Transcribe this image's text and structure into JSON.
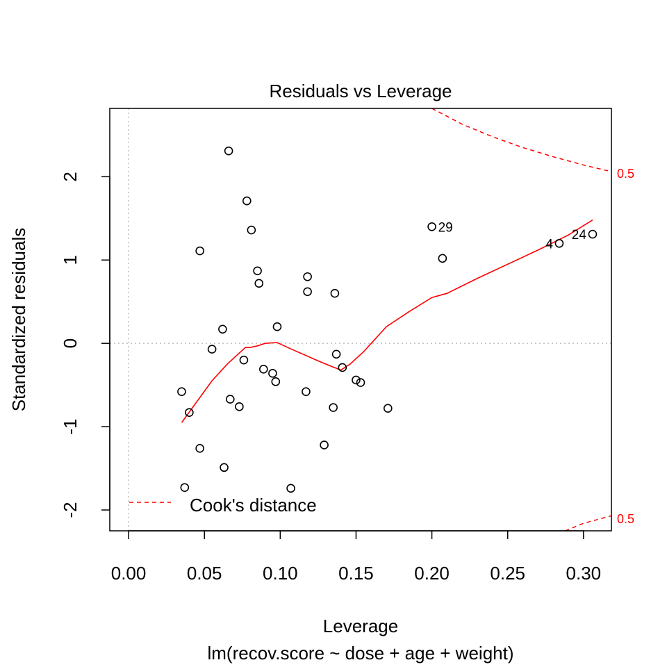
{
  "chart_data": {
    "type": "scatter",
    "title": "Residuals vs Leverage",
    "xlabel": "Leverage",
    "sublabel": "lm(recov.score ~ dose + age + weight)",
    "ylabel": "Standardized residuals",
    "xlim": [
      -0.0124,
      0.3184
    ],
    "ylim": [
      -2.25,
      2.82
    ],
    "xticks": [
      {
        "value": 0.0,
        "label": "0.00"
      },
      {
        "value": 0.05,
        "label": "0.05"
      },
      {
        "value": 0.1,
        "label": "0.10"
      },
      {
        "value": 0.15,
        "label": "0.15"
      },
      {
        "value": 0.2,
        "label": "0.20"
      },
      {
        "value": 0.25,
        "label": "0.25"
      },
      {
        "value": 0.3,
        "label": "0.30"
      }
    ],
    "yticks": [
      {
        "value": -2,
        "label": "-2"
      },
      {
        "value": -1,
        "label": "-1"
      },
      {
        "value": 0,
        "label": "0"
      },
      {
        "value": 1,
        "label": "1"
      },
      {
        "value": 2,
        "label": "2"
      }
    ],
    "points": [
      {
        "x": 0.066,
        "y": 2.31
      },
      {
        "x": 0.078,
        "y": 1.71
      },
      {
        "x": 0.081,
        "y": 1.36
      },
      {
        "x": 0.047,
        "y": 1.11
      },
      {
        "x": 0.085,
        "y": 0.87
      },
      {
        "x": 0.086,
        "y": 0.72
      },
      {
        "x": 0.118,
        "y": 0.8
      },
      {
        "x": 0.118,
        "y": 0.62
      },
      {
        "x": 0.136,
        "y": 0.6
      },
      {
        "x": 0.062,
        "y": 0.17
      },
      {
        "x": 0.098,
        "y": 0.2
      },
      {
        "x": 0.055,
        "y": -0.07
      },
      {
        "x": 0.076,
        "y": -0.2
      },
      {
        "x": 0.089,
        "y": -0.31
      },
      {
        "x": 0.095,
        "y": -0.36
      },
      {
        "x": 0.097,
        "y": -0.46
      },
      {
        "x": 0.137,
        "y": -0.13
      },
      {
        "x": 0.141,
        "y": -0.29
      },
      {
        "x": 0.15,
        "y": -0.44
      },
      {
        "x": 0.153,
        "y": -0.47
      },
      {
        "x": 0.035,
        "y": -0.58
      },
      {
        "x": 0.04,
        "y": -0.83
      },
      {
        "x": 0.067,
        "y": -0.67
      },
      {
        "x": 0.073,
        "y": -0.76
      },
      {
        "x": 0.117,
        "y": -0.58
      },
      {
        "x": 0.135,
        "y": -0.77
      },
      {
        "x": 0.171,
        "y": -0.78
      },
      {
        "x": 0.047,
        "y": -1.26
      },
      {
        "x": 0.063,
        "y": -1.49
      },
      {
        "x": 0.129,
        "y": -1.22
      },
      {
        "x": 0.037,
        "y": -1.73
      },
      {
        "x": 0.107,
        "y": -1.74
      },
      {
        "x": 0.2,
        "y": 1.4,
        "label": "29"
      },
      {
        "x": 0.207,
        "y": 1.02
      },
      {
        "x": 0.284,
        "y": 1.2,
        "label": "4"
      },
      {
        "x": 0.306,
        "y": 1.31,
        "label": "24"
      }
    ],
    "smooth_line": {
      "color": "#ff0000",
      "x": [
        0.035,
        0.045,
        0.055,
        0.065,
        0.077,
        0.08,
        0.085,
        0.09,
        0.098,
        0.105,
        0.115,
        0.125,
        0.133,
        0.14,
        0.146,
        0.155,
        0.17,
        0.185,
        0.2,
        0.21,
        0.23,
        0.25,
        0.27,
        0.29,
        0.306
      ],
      "y": [
        -0.95,
        -0.7,
        -0.45,
        -0.25,
        -0.05,
        -0.05,
        -0.03,
        0.0,
        0.01,
        -0.05,
        -0.13,
        -0.21,
        -0.27,
        -0.32,
        -0.25,
        -0.1,
        0.2,
        0.38,
        0.55,
        0.6,
        0.78,
        0.95,
        1.12,
        1.3,
        1.48
      ]
    },
    "cooks_contours": {
      "color": "#ff0000",
      "label": "0.5",
      "upper": {
        "x": [
          0.2,
          0.22,
          0.24,
          0.26,
          0.28,
          0.3,
          0.3184
        ],
        "y": [
          2.82,
          2.63,
          2.48,
          2.35,
          2.24,
          2.14,
          2.06
        ]
      },
      "lower": {
        "x": [
          0.288,
          0.3,
          0.3184
        ],
        "y": [
          -2.25,
          -2.16,
          -2.07
        ]
      }
    },
    "reference_lines": {
      "h": 0,
      "v": 0,
      "color": "#bebebe",
      "style": "dotted"
    },
    "legend": {
      "position": "bottom-left",
      "entries": [
        {
          "label": "Cook's distance",
          "color": "#ff0000",
          "style": "dashed"
        }
      ]
    },
    "grid": false
  }
}
